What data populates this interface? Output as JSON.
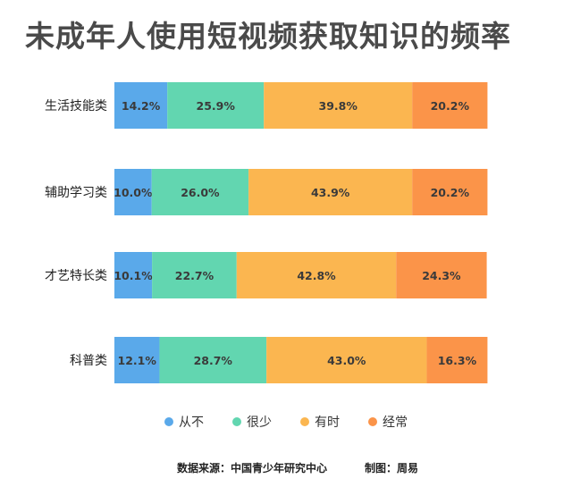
{
  "title": "未成年人使用短视频获取知识的频率",
  "legend": [
    {
      "label": "从不",
      "color": "#5aa9ea"
    },
    {
      "label": "很少",
      "color": "#62d6b0"
    },
    {
      "label": "有时",
      "color": "#fbb650"
    },
    {
      "label": "经常",
      "color": "#fb9449"
    }
  ],
  "footer": {
    "source": "数据来源：中国青少年研究中心",
    "credit": "制图：周易"
  },
  "chart_data": {
    "type": "bar",
    "orientation": "horizontal",
    "stacked": true,
    "categories": [
      "生活技能类",
      "辅助学习类",
      "才艺特长类",
      "科普类"
    ],
    "series": [
      {
        "name": "从不",
        "color": "#5aa9ea",
        "values": [
          14.2,
          10.0,
          10.1,
          12.1
        ],
        "labels": [
          "14.2%",
          "10.0%",
          "10.1%",
          "12.1%"
        ]
      },
      {
        "name": "很少",
        "color": "#62d6b0",
        "values": [
          25.9,
          26.0,
          22.7,
          28.7
        ],
        "labels": [
          "25.9%",
          "26.0%",
          "22.7%",
          "28.7%"
        ]
      },
      {
        "name": "有时",
        "color": "#fbb650",
        "values": [
          39.8,
          43.9,
          42.8,
          43.0
        ],
        "labels": [
          "39.8%",
          "43.9%",
          "42.8%",
          "43.0%"
        ]
      },
      {
        "name": "经常",
        "color": "#fb9449",
        "values": [
          20.2,
          20.2,
          24.3,
          16.3
        ],
        "labels": [
          "20.2%",
          "20.2%",
          "24.3%",
          "16.3%"
        ]
      }
    ],
    "xlim": [
      0,
      100
    ],
    "legend_position": "bottom",
    "grid": false
  }
}
